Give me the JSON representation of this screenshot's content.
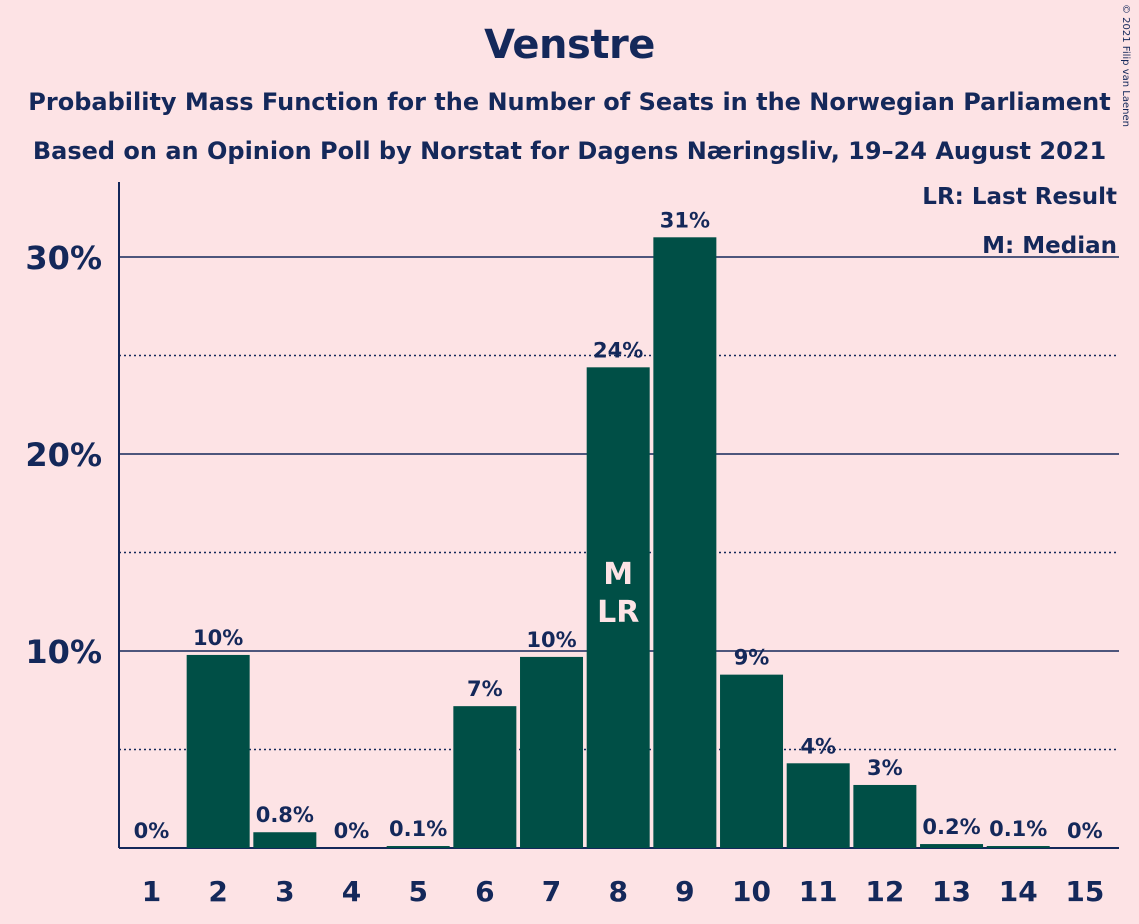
{
  "copyright": "© 2021 Filip van Laenen",
  "chart_data": {
    "type": "bar",
    "title": "Venstre",
    "subtitle": [
      "Probability Mass Function for the Number of Seats in the Norwegian Parliament",
      "Based on an Opinion Poll by Norstat for Dagens Næringsliv, 19–24 August 2021"
    ],
    "categories": [
      "1",
      "2",
      "3",
      "4",
      "5",
      "6",
      "7",
      "8",
      "9",
      "10",
      "11",
      "12",
      "13",
      "14",
      "15"
    ],
    "values": [
      0,
      9.8,
      0.8,
      0,
      0.1,
      7.2,
      9.7,
      24.4,
      31.0,
      8.8,
      4.3,
      3.2,
      0.2,
      0.1,
      0
    ],
    "data_labels": [
      "0%",
      "10%",
      "0.8%",
      "0%",
      "0.1%",
      "7%",
      "10%",
      "24%",
      "31%",
      "9%",
      "4%",
      "3%",
      "0.2%",
      "0.1%",
      "0%"
    ],
    "ylim": [
      0,
      33
    ],
    "yticks": [
      10,
      20,
      30
    ],
    "ytick_labels": [
      "10%",
      "20%",
      "30%"
    ],
    "minor_gridlines": [
      5,
      15,
      25
    ],
    "markers": [
      {
        "category": "8",
        "labels": [
          "M",
          "LR"
        ]
      }
    ],
    "legend": {
      "position": "top-right",
      "entries": [
        "LR: Last Result",
        "M: Median"
      ]
    },
    "colors": {
      "bar": "#004f46",
      "background": "#fde3e5",
      "text": "#14285a"
    }
  }
}
